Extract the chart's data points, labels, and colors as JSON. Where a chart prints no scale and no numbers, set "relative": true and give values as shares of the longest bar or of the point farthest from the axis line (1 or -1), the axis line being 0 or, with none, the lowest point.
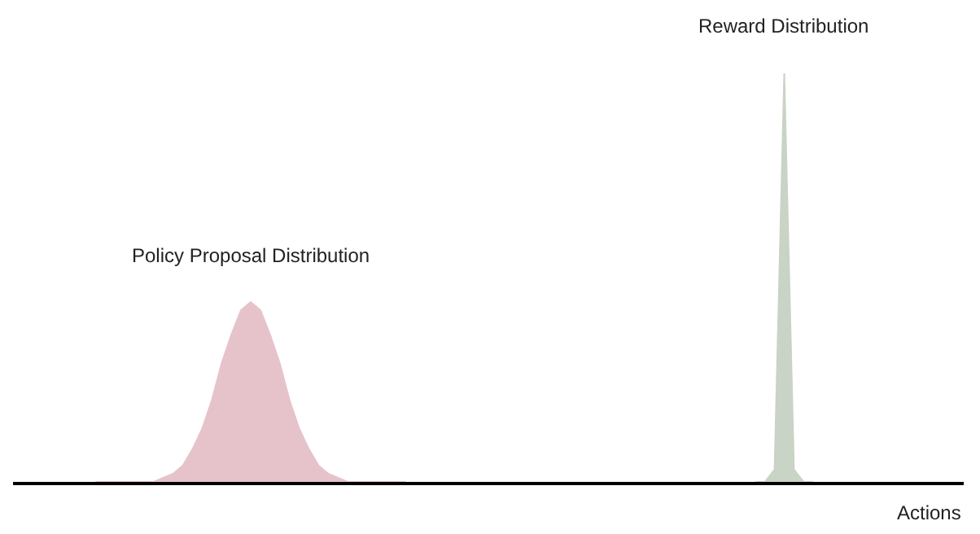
{
  "chart_data": {
    "type": "area",
    "relative": true,
    "xlabel": "Actions",
    "legend": false,
    "categories": [
      null,
      null,
      null,
      null,
      null,
      null,
      null,
      null,
      null,
      null,
      null,
      null,
      null,
      null,
      null,
      null,
      null,
      null,
      null,
      null,
      null,
      null,
      null,
      null,
      null,
      null,
      null,
      null,
      null,
      null,
      null,
      null,
      null,
      null,
      null,
      null,
      null,
      null,
      null,
      null,
      null,
      null,
      null,
      null,
      null,
      null,
      null,
      null,
      null,
      null,
      null,
      null,
      null,
      null,
      null,
      null,
      null,
      null,
      null,
      null,
      null,
      null,
      null,
      null,
      null,
      null,
      null,
      null,
      null,
      null,
      null,
      null,
      null,
      null,
      null,
      null,
      null,
      null,
      null,
      null,
      null,
      null,
      null,
      null,
      null,
      null,
      null,
      null,
      null,
      null,
      null,
      null,
      null,
      null,
      null,
      null,
      null,
      null
    ],
    "series": [
      {
        "name": "Policy Proposal Distribution",
        "color": "#e6c3cb",
        "values": [
          null,
          null,
          null,
          null,
          null,
          null,
          null,
          null,
          0,
          0,
          0,
          0,
          0,
          0,
          0,
          0.01,
          0.02,
          0.04,
          0.08,
          0.13,
          0.2,
          0.29,
          0.36,
          0.42,
          0.44,
          0.42,
          0.36,
          0.29,
          0.2,
          0.13,
          0.08,
          0.04,
          0.02,
          0.01,
          0,
          0,
          0,
          0,
          0,
          0,
          0,
          null,
          null,
          null,
          null,
          null,
          null,
          null,
          null,
          null,
          null,
          null,
          null,
          null,
          null,
          null,
          null,
          null,
          null,
          null,
          null,
          null,
          null,
          null,
          null,
          null,
          null,
          null,
          null,
          null,
          null,
          null,
          null,
          null,
          null,
          null,
          null,
          null,
          null,
          null,
          null,
          null,
          null,
          null,
          null,
          null,
          null,
          null,
          null,
          null,
          null,
          null,
          null,
          null,
          null,
          null,
          null,
          null
        ]
      },
      {
        "name": "Reward Distribution",
        "color": "#c9d3c6",
        "values": [
          null,
          null,
          null,
          null,
          null,
          null,
          null,
          null,
          null,
          null,
          null,
          null,
          null,
          null,
          null,
          null,
          null,
          null,
          null,
          null,
          null,
          null,
          null,
          null,
          null,
          null,
          null,
          null,
          null,
          null,
          null,
          null,
          null,
          null,
          null,
          null,
          null,
          null,
          null,
          null,
          null,
          null,
          null,
          null,
          null,
          null,
          null,
          null,
          null,
          null,
          null,
          null,
          null,
          null,
          null,
          null,
          null,
          null,
          null,
          null,
          null,
          null,
          null,
          null,
          null,
          null,
          null,
          null,
          null,
          null,
          null,
          null,
          null,
          null,
          null,
          null,
          0,
          0,
          0.03,
          1,
          0.03,
          0,
          0,
          null,
          null,
          null,
          null,
          null,
          null,
          null,
          null,
          null,
          null,
          null,
          null,
          null,
          null,
          null
        ]
      }
    ]
  }
}
